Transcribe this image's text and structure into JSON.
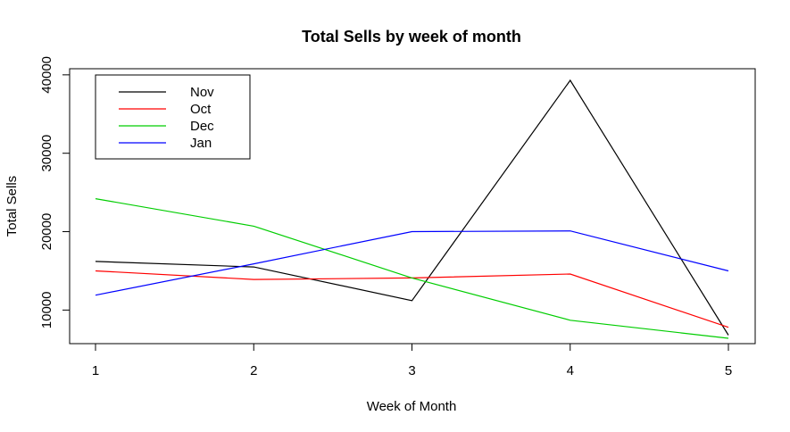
{
  "chart_data": {
    "type": "line",
    "title": "Total Sells by week of month",
    "xlabel": "Week of Month",
    "ylabel": "Total Sells",
    "x": [
      1,
      2,
      3,
      4,
      5
    ],
    "x_ticks": [
      "1",
      "2",
      "3",
      "4",
      "5"
    ],
    "y_ticks": [
      10000,
      20000,
      30000,
      40000
    ],
    "y_tick_labels": [
      "10000",
      "20000",
      "30000",
      "40000"
    ],
    "xlim": [
      1,
      5
    ],
    "ylim": [
      6400,
      39300
    ],
    "grid": false,
    "legend_position": "top-left",
    "series": [
      {
        "name": "Nov",
        "color": "#000000",
        "values": [
          16200,
          15500,
          11200,
          39300,
          6800
        ]
      },
      {
        "name": "Oct",
        "color": "#ff0000",
        "values": [
          15000,
          13900,
          14100,
          14600,
          7800
        ]
      },
      {
        "name": "Dec",
        "color": "#00cd00",
        "values": [
          24200,
          20700,
          14100,
          8700,
          6400
        ]
      },
      {
        "name": "Jan",
        "color": "#0000ff",
        "values": [
          11900,
          15900,
          20000,
          20100,
          15000
        ]
      }
    ]
  }
}
